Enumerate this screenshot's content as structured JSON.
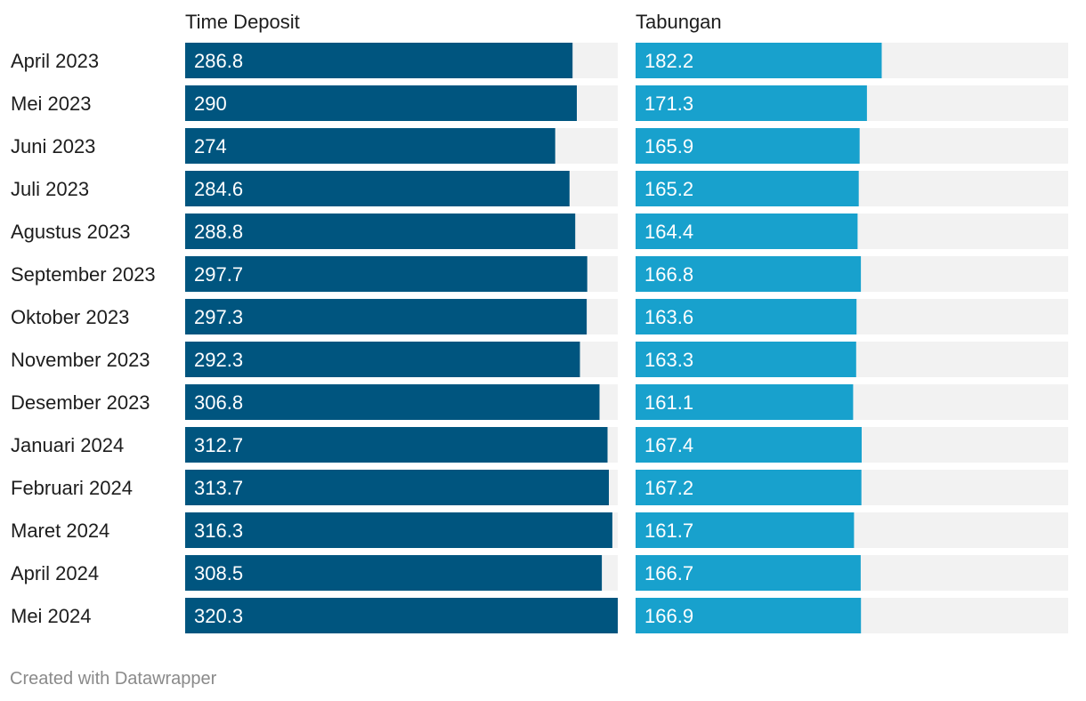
{
  "chart_data": {
    "type": "bar",
    "orientation": "horizontal",
    "categories": [
      "April 2023",
      "Mei 2023",
      "Juni 2023",
      "Juli 2023",
      "Agustus 2023",
      "September 2023",
      "Oktober 2023",
      "November 2023",
      "Desember 2023",
      "Januari 2024",
      "Februari 2024",
      "Maret 2024",
      "April 2024",
      "Mei 2024"
    ],
    "series": [
      {
        "name": "Time Deposit",
        "color": "#00557f",
        "values": [
          286.8,
          290,
          274,
          284.6,
          288.8,
          297.7,
          297.3,
          292.3,
          306.8,
          312.7,
          313.7,
          316.3,
          308.5,
          320.3
        ],
        "max": 320.3
      },
      {
        "name": "Tabungan",
        "color": "#18a1cd",
        "values": [
          182.2,
          171.3,
          165.9,
          165.2,
          164.4,
          166.8,
          163.6,
          163.3,
          161.1,
          167.4,
          167.2,
          161.7,
          166.7,
          166.9
        ],
        "max": 320.3
      }
    ],
    "background_bar_color": "#f2f2f2"
  },
  "footer": {
    "credit": "Created with Datawrapper"
  }
}
